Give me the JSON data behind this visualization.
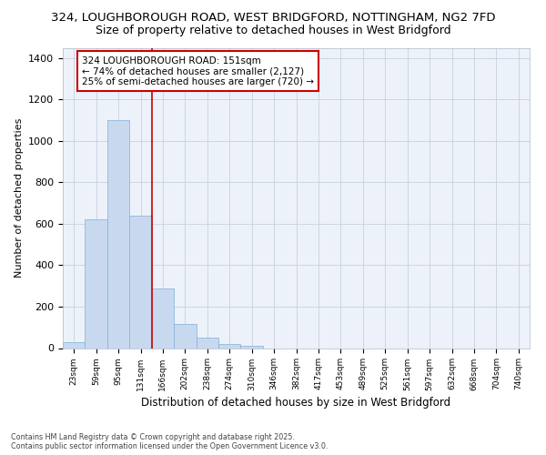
{
  "title_line1": "324, LOUGHBOROUGH ROAD, WEST BRIDGFORD, NOTTINGHAM, NG2 7FD",
  "title_line2": "Size of property relative to detached houses in West Bridgford",
  "xlabel": "Distribution of detached houses by size in West Bridgford",
  "ylabel": "Number of detached properties",
  "bin_labels": [
    "23sqm",
    "59sqm",
    "95sqm",
    "131sqm",
    "166sqm",
    "202sqm",
    "238sqm",
    "274sqm",
    "310sqm",
    "346sqm",
    "382sqm",
    "417sqm",
    "453sqm",
    "489sqm",
    "525sqm",
    "561sqm",
    "597sqm",
    "632sqm",
    "668sqm",
    "704sqm",
    "740sqm"
  ],
  "bar_values": [
    30,
    620,
    1100,
    640,
    290,
    115,
    50,
    20,
    10,
    0,
    0,
    0,
    0,
    0,
    0,
    0,
    0,
    0,
    0,
    0,
    0
  ],
  "bar_color": "#c8d9ef",
  "bar_edge_color": "#7fafd4",
  "bg_color": "#edf2fa",
  "annotation_text": "324 LOUGHBOROUGH ROAD: 151sqm\n← 74% of detached houses are smaller (2,127)\n25% of semi-detached houses are larger (720) →",
  "annotation_box_color": "#ffffff",
  "annotation_box_edge": "#cc0000",
  "footnote": "Contains HM Land Registry data © Crown copyright and database right 2025.\nContains public sector information licensed under the Open Government Licence v3.0.",
  "ylim": [
    0,
    1450
  ],
  "yticks": [
    0,
    200,
    400,
    600,
    800,
    1000,
    1200,
    1400
  ],
  "grid_color": "#c8d0de",
  "title1_fontsize": 9.5,
  "title2_fontsize": 9.0
}
